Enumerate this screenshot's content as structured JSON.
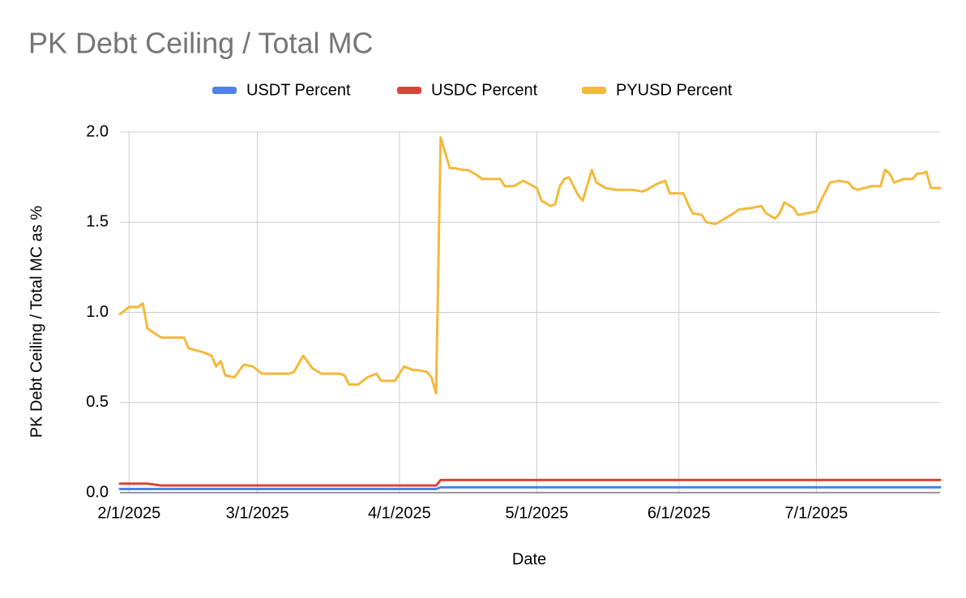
{
  "chart_data": {
    "type": "line",
    "title": "PK Debt Ceiling / Total MC",
    "x_label": "Date",
    "y_label": "PK Debt Ceiling / Total MC as %",
    "x": [
      "1/30/2025",
      "2/1/2025",
      "2/3/2025",
      "2/4/2025",
      "2/5/2025",
      "2/8/2025",
      "2/13/2025",
      "2/14/2025",
      "2/17/2025",
      "2/19/2025",
      "2/20/2025",
      "2/21/2025",
      "2/22/2025",
      "2/24/2025",
      "2/26/2025",
      "2/28/2025",
      "3/2/2025",
      "3/5/2025",
      "3/8/2025",
      "3/9/2025",
      "3/11/2025",
      "3/13/2025",
      "3/15/2025",
      "3/19/2025",
      "3/20/2025",
      "3/21/2025",
      "3/23/2025",
      "3/25/2025",
      "3/27/2025",
      "3/28/2025",
      "3/31/2025",
      "4/2/2025",
      "4/4/2025",
      "4/5/2025",
      "4/7/2025",
      "4/8/2025",
      "4/9/2025",
      "4/10/2025",
      "4/12/2025",
      "4/13/2025",
      "4/15/2025",
      "4/16/2025",
      "4/18/2025",
      "4/19/2025",
      "4/21/2025",
      "4/23/2025",
      "4/24/2025",
      "4/26/2025",
      "4/28/2025",
      "5/1/2025",
      "5/2/2025",
      "5/4/2025",
      "5/5/2025",
      "5/6/2025",
      "5/7/2025",
      "5/8/2025",
      "5/9/2025",
      "5/10/2025",
      "5/11/2025",
      "5/13/2025",
      "5/14/2025",
      "5/16/2025",
      "5/18/2025",
      "5/20/2025",
      "5/22/2025",
      "5/24/2025",
      "5/25/2025",
      "5/27/2025",
      "5/29/2025",
      "5/30/2025",
      "6/2/2025",
      "6/3/2025",
      "6/4/2025",
      "6/6/2025",
      "6/7/2025",
      "6/9/2025",
      "6/11/2025",
      "6/13/2025",
      "6/14/2025",
      "6/17/2025",
      "6/19/2025",
      "6/20/2025",
      "6/22/2025",
      "6/23/2025",
      "6/24/2025",
      "6/26/2025",
      "6/27/2025",
      "6/29/2025",
      "7/1/2025",
      "7/2/2025",
      "7/4/2025",
      "7/6/2025",
      "7/8/2025",
      "7/9/2025",
      "7/10/2025",
      "7/13/2025",
      "7/15/2025",
      "7/16/2025",
      "7/17/2025",
      "7/18/2025",
      "7/20/2025",
      "7/22/2025",
      "7/23/2025",
      "7/24/2025",
      "7/25/2025",
      "7/26/2025",
      "7/28/2025"
    ],
    "series": [
      {
        "name": "USDT Percent",
        "color": "#4f81e8",
        "values": [
          0.02,
          0.02,
          0.02,
          0.02,
          0.02,
          0.02,
          0.02,
          0.02,
          0.02,
          0.02,
          0.02,
          0.02,
          0.02,
          0.02,
          0.02,
          0.02,
          0.02,
          0.02,
          0.02,
          0.02,
          0.02,
          0.02,
          0.02,
          0.02,
          0.02,
          0.02,
          0.02,
          0.02,
          0.02,
          0.02,
          0.02,
          0.02,
          0.02,
          0.02,
          0.02,
          0.02,
          0.02,
          0.03,
          0.03,
          0.03,
          0.03,
          0.03,
          0.03,
          0.03,
          0.03,
          0.03,
          0.03,
          0.03,
          0.03,
          0.03,
          0.03,
          0.03,
          0.03,
          0.03,
          0.03,
          0.03,
          0.03,
          0.03,
          0.03,
          0.03,
          0.03,
          0.03,
          0.03,
          0.03,
          0.03,
          0.03,
          0.03,
          0.03,
          0.03,
          0.03,
          0.03,
          0.03,
          0.03,
          0.03,
          0.03,
          0.03,
          0.03,
          0.03,
          0.03,
          0.03,
          0.03,
          0.03,
          0.03,
          0.03,
          0.03,
          0.03,
          0.03,
          0.03,
          0.03,
          0.03,
          0.03,
          0.03,
          0.03,
          0.03,
          0.03,
          0.03,
          0.03,
          0.03,
          0.03,
          0.03,
          0.03,
          0.03,
          0.03,
          0.03,
          0.03,
          0.03,
          0.03
        ]
      },
      {
        "name": "USDC Percent",
        "color": "#db4437",
        "values": [
          0.05,
          0.05,
          0.05,
          0.05,
          0.05,
          0.04,
          0.04,
          0.04,
          0.04,
          0.04,
          0.04,
          0.04,
          0.04,
          0.04,
          0.04,
          0.04,
          0.04,
          0.04,
          0.04,
          0.04,
          0.04,
          0.04,
          0.04,
          0.04,
          0.04,
          0.04,
          0.04,
          0.04,
          0.04,
          0.04,
          0.04,
          0.04,
          0.04,
          0.04,
          0.04,
          0.04,
          0.04,
          0.07,
          0.07,
          0.07,
          0.07,
          0.07,
          0.07,
          0.07,
          0.07,
          0.07,
          0.07,
          0.07,
          0.07,
          0.07,
          0.07,
          0.07,
          0.07,
          0.07,
          0.07,
          0.07,
          0.07,
          0.07,
          0.07,
          0.07,
          0.07,
          0.07,
          0.07,
          0.07,
          0.07,
          0.07,
          0.07,
          0.07,
          0.07,
          0.07,
          0.07,
          0.07,
          0.07,
          0.07,
          0.07,
          0.07,
          0.07,
          0.07,
          0.07,
          0.07,
          0.07,
          0.07,
          0.07,
          0.07,
          0.07,
          0.07,
          0.07,
          0.07,
          0.07,
          0.07,
          0.07,
          0.07,
          0.07,
          0.07,
          0.07,
          0.07,
          0.07,
          0.07,
          0.07,
          0.07,
          0.07,
          0.07,
          0.07,
          0.07,
          0.07,
          0.07,
          0.07
        ]
      },
      {
        "name": "PYUSD Percent",
        "color": "#f4b93b",
        "values": [
          0.99,
          1.03,
          1.03,
          1.05,
          0.91,
          0.86,
          0.86,
          0.8,
          0.78,
          0.76,
          0.7,
          0.73,
          0.65,
          0.64,
          0.71,
          0.7,
          0.66,
          0.66,
          0.66,
          0.67,
          0.76,
          0.69,
          0.66,
          0.66,
          0.65,
          0.6,
          0.6,
          0.64,
          0.66,
          0.62,
          0.62,
          0.7,
          0.68,
          0.68,
          0.67,
          0.64,
          0.55,
          1.97,
          1.8,
          1.8,
          1.79,
          1.79,
          1.76,
          1.74,
          1.74,
          1.74,
          1.7,
          1.7,
          1.73,
          1.69,
          1.62,
          1.59,
          1.6,
          1.7,
          1.74,
          1.75,
          1.7,
          1.65,
          1.62,
          1.79,
          1.72,
          1.69,
          1.68,
          1.68,
          1.68,
          1.67,
          1.68,
          1.71,
          1.73,
          1.66,
          1.66,
          1.6,
          1.55,
          1.54,
          1.5,
          1.49,
          1.52,
          1.55,
          1.57,
          1.58,
          1.59,
          1.55,
          1.52,
          1.55,
          1.61,
          1.58,
          1.54,
          1.55,
          1.56,
          1.62,
          1.72,
          1.73,
          1.72,
          1.69,
          1.68,
          1.7,
          1.7,
          1.79,
          1.77,
          1.72,
          1.74,
          1.74,
          1.77,
          1.77,
          1.78,
          1.69,
          1.69
        ]
      }
    ],
    "xlim": [
      "1/30/2025",
      "7/28/2025"
    ],
    "xticks": [
      "2/1/2025",
      "3/1/2025",
      "4/1/2025",
      "5/1/2025",
      "6/1/2025",
      "7/1/2025"
    ],
    "ylim": [
      0,
      2
    ],
    "yticks": [
      {
        "value": 0,
        "label": "0.0"
      },
      0.5,
      {
        "value": 1,
        "label": "1.0"
      },
      1.5,
      {
        "value": 2,
        "label": "2.0"
      }
    ],
    "grid": true,
    "legend": "top"
  }
}
